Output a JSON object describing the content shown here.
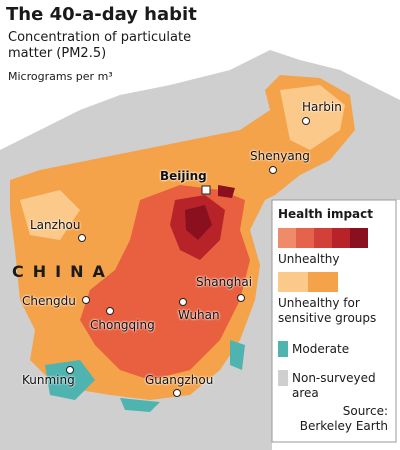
{
  "header": {
    "title": "The 40-a-day habit",
    "subtitle": "Concentration of particulate matter (PM2.5)",
    "unit": "Micrograms per m³"
  },
  "map": {
    "country": "CHINA",
    "cities": [
      "Harbin",
      "Shenyang",
      "Beijing",
      "Lanzhou",
      "Chengdu",
      "Chongqing",
      "Shanghai",
      "Wuhan",
      "Kunming",
      "Guangzhou"
    ]
  },
  "legend": {
    "title": "Health impact",
    "items": [
      "Unhealthy",
      "Unhealthy for sensitive groups",
      "Moderate",
      "Non-surveyed area"
    ]
  },
  "source": "Source: Berkeley Earth"
}
